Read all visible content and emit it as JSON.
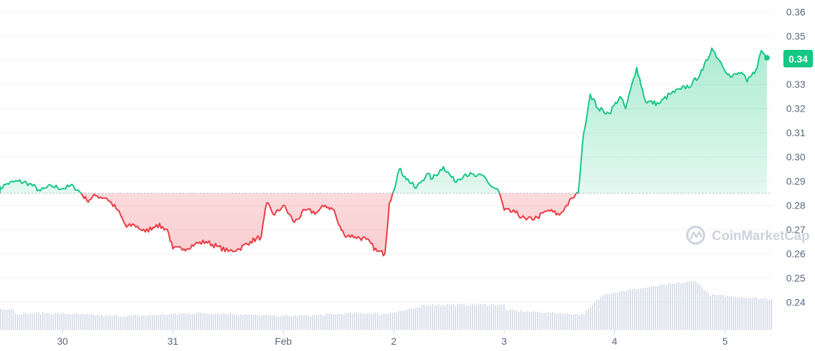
{
  "chart_data": {
    "type": "line",
    "xlabel": "",
    "ylabel": "",
    "ylim": [
      0.23,
      0.36
    ],
    "y_ticks": [
      "0.36",
      "0.35",
      "0.34",
      "0.33",
      "0.32",
      "0.31",
      "0.30",
      "0.29",
      "0.28",
      "0.27",
      "0.26",
      "0.25",
      "0.24"
    ],
    "x_ticks": [
      "30",
      "31",
      "Feb",
      "2",
      "3",
      "4",
      "5"
    ],
    "baseline": 0.285,
    "current_price": "0.34",
    "grid": true,
    "colors": {
      "up": "#16c784",
      "down": "#ea3943",
      "volume": "#cfd6e4",
      "grid": "#eff2f5",
      "baseline": "#a6b0c3"
    },
    "series": [
      {
        "values": [
          [
            29.4,
            0.286
          ],
          [
            29.5,
            0.289
          ],
          [
            29.6,
            0.29
          ],
          [
            29.7,
            0.289
          ],
          [
            29.8,
            0.286
          ],
          [
            29.9,
            0.288
          ],
          [
            30.0,
            0.287
          ],
          [
            30.1,
            0.288
          ],
          [
            30.17,
            0.285
          ],
          [
            30.22,
            0.282
          ],
          [
            30.3,
            0.284
          ],
          [
            30.4,
            0.283
          ],
          [
            30.5,
            0.278
          ],
          [
            30.58,
            0.271
          ],
          [
            30.65,
            0.272
          ],
          [
            30.75,
            0.269
          ],
          [
            30.85,
            0.272
          ],
          [
            30.95,
            0.27
          ],
          [
            31.0,
            0.262
          ],
          [
            31.1,
            0.262
          ],
          [
            31.2,
            0.264
          ],
          [
            31.3,
            0.265
          ],
          [
            31.4,
            0.263
          ],
          [
            31.5,
            0.261
          ],
          [
            31.6,
            0.262
          ],
          [
            31.7,
            0.265
          ],
          [
            31.8,
            0.267
          ],
          [
            31.85,
            0.281
          ],
          [
            31.92,
            0.276
          ],
          [
            32.0,
            0.28
          ],
          [
            32.1,
            0.273
          ],
          [
            32.2,
            0.278
          ],
          [
            32.3,
            0.277
          ],
          [
            32.38,
            0.28
          ],
          [
            32.46,
            0.278
          ],
          [
            32.5,
            0.272
          ],
          [
            32.55,
            0.268
          ],
          [
            32.65,
            0.267
          ],
          [
            32.75,
            0.266
          ],
          [
            32.85,
            0.261
          ],
          [
            32.92,
            0.26
          ],
          [
            32.96,
            0.281
          ],
          [
            32.99,
            0.285
          ],
          [
            33.05,
            0.295
          ],
          [
            33.1,
            0.292
          ],
          [
            33.2,
            0.287
          ],
          [
            33.3,
            0.293
          ],
          [
            33.35,
            0.291
          ],
          [
            33.45,
            0.296
          ],
          [
            33.55,
            0.29
          ],
          [
            33.65,
            0.293
          ],
          [
            33.75,
            0.292
          ],
          [
            33.82,
            0.292
          ],
          [
            33.88,
            0.288
          ],
          [
            33.95,
            0.286
          ],
          [
            34.0,
            0.278
          ],
          [
            34.1,
            0.277
          ],
          [
            34.2,
            0.274
          ],
          [
            34.3,
            0.275
          ],
          [
            34.4,
            0.278
          ],
          [
            34.5,
            0.276
          ],
          [
            34.55,
            0.279
          ],
          [
            34.62,
            0.283
          ],
          [
            34.67,
            0.285
          ],
          [
            34.72,
            0.31
          ],
          [
            34.78,
            0.326
          ],
          [
            34.85,
            0.32
          ],
          [
            34.95,
            0.318
          ],
          [
            35.05,
            0.325
          ],
          [
            35.1,
            0.32
          ],
          [
            35.2,
            0.337
          ],
          [
            35.28,
            0.323
          ],
          [
            35.4,
            0.322
          ],
          [
            35.5,
            0.326
          ],
          [
            35.6,
            0.328
          ],
          [
            35.7,
            0.33
          ],
          [
            35.8,
            0.336
          ],
          [
            35.88,
            0.345
          ],
          [
            35.95,
            0.34
          ],
          [
            36.05,
            0.333
          ],
          [
            36.15,
            0.335
          ],
          [
            36.2,
            0.331
          ],
          [
            36.28,
            0.336
          ],
          [
            36.33,
            0.344
          ],
          [
            36.38,
            0.341
          ]
        ]
      }
    ],
    "volume": "relative volume bars along the bottom of the plot"
  },
  "watermark": {
    "text": "CoinMarketCap"
  }
}
